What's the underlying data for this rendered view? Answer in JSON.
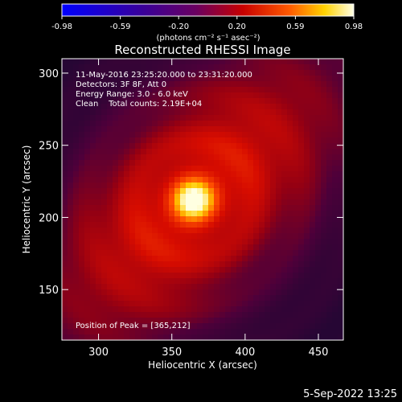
{
  "chart_data": {
    "type": "heatmap",
    "title": "Reconstructed RHESSI Image",
    "xlabel": "Heliocentric X (arcsec)",
    "ylabel": "Heliocentric Y (arcsec)",
    "xlim": [
      275,
      467
    ],
    "ylim": [
      115,
      310
    ],
    "x_ticks": [
      300,
      350,
      400,
      450
    ],
    "y_ticks": [
      150,
      200,
      250,
      300
    ],
    "peak": {
      "x": 365,
      "y": 212
    },
    "colorbar": {
      "range": [
        -0.98,
        0.98
      ],
      "ticks": [
        "-0.98",
        "-0.59",
        "-0.20",
        "0.20",
        "0.59",
        "0.98"
      ],
      "units": "(photons cm⁻² s⁻¹ asec⁻²)"
    },
    "info_lines": [
      "11-May-2016 23:25:20.000 to 23:31:20.000",
      "Detectors: 3F 8F, Att 0",
      "Energy Range: 3.0 - 6.0 keV",
      "Clean    Total counts: 2.19E+04"
    ],
    "peak_label": "Position of Peak = [365,212]",
    "grid": false
  },
  "footer": {
    "date": "5-Sep-2022 13:25"
  }
}
